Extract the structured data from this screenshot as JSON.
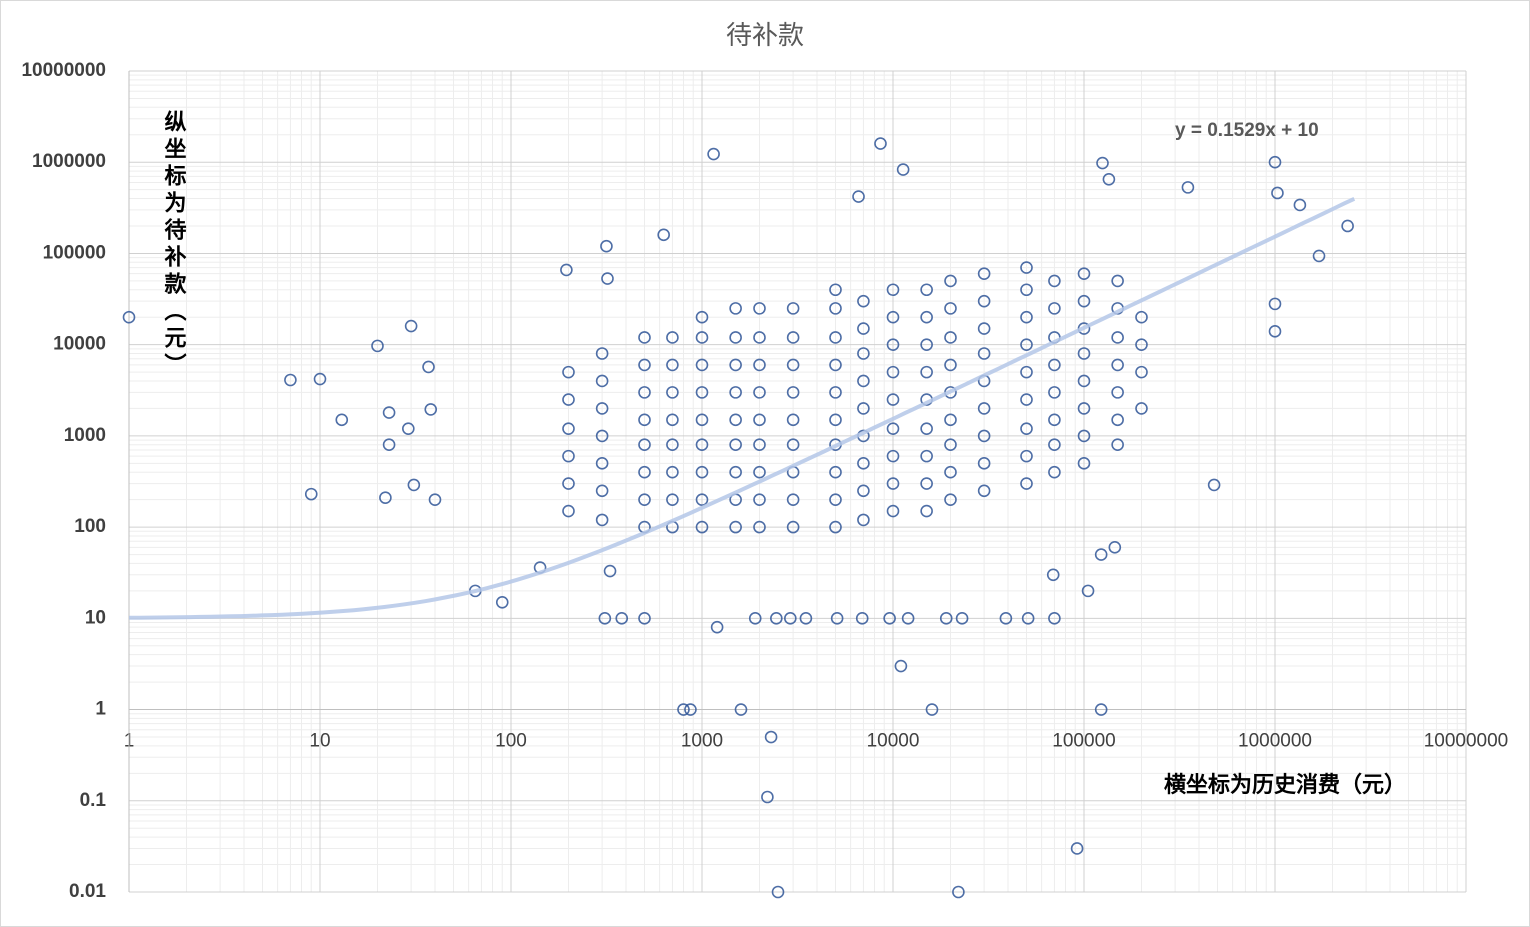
{
  "chart_data": {
    "type": "scatter",
    "title": "待补款",
    "x_label": "横坐标为历史消费（元）",
    "y_label": "纵坐标为待补款（元）",
    "log_x": true,
    "log_y": true,
    "grid": true,
    "minor_grid": true,
    "x_axis_crosses": 1,
    "color": "#2f5597",
    "xlim": [
      1,
      10000000
    ],
    "ylim": [
      0.01,
      10000000
    ],
    "xticks": [
      1,
      10,
      100,
      1000,
      10000,
      100000,
      1000000,
      10000000
    ],
    "yticks": [
      0.01,
      0.1,
      1,
      10,
      100,
      1000,
      10000,
      100000,
      1000000,
      10000000
    ],
    "trendline": {
      "label": "y = 0.1529x + 10",
      "slope": 0.1529,
      "intercept": 10,
      "xrange": [
        1,
        2600000
      ],
      "color": "#b4c7e7"
    },
    "x": [
      1,
      7,
      10,
      13,
      20,
      30,
      9,
      23,
      23,
      29,
      22,
      31,
      37,
      38,
      40,
      65,
      90,
      142,
      195,
      316,
      320,
      310,
      380,
      500,
      330,
      1150,
      8600,
      11300,
      630,
      6600,
      135000,
      125000,
      350000,
      1000000,
      1030000,
      2400000,
      1700000,
      1350000,
      1000000,
      1000000,
      480000,
      105000,
      145000,
      123000,
      69000,
      1200,
      2300,
      2200,
      2500,
      22000,
      92000,
      11000,
      1900,
      2450,
      2900,
      3500,
      5100,
      6900,
      9600,
      12000,
      19000,
      23000,
      39000,
      51000,
      70000,
      800,
      870,
      1600,
      16000,
      123000,
      200,
      200,
      200,
      200,
      200,
      200,
      300,
      300,
      300,
      300,
      300,
      300,
      300,
      500,
      500,
      500,
      500,
      500,
      500,
      500,
      500,
      700,
      700,
      700,
      700,
      700,
      700,
      700,
      700,
      1000,
      1000,
      1000,
      1000,
      1000,
      1000,
      1000,
      1000,
      1000,
      1500,
      1500,
      1500,
      1500,
      1500,
      1500,
      1500,
      1500,
      1500,
      2000,
      2000,
      2000,
      2000,
      2000,
      2000,
      2000,
      2000,
      2000,
      3000,
      3000,
      3000,
      3000,
      3000,
      3000,
      3000,
      3000,
      3000,
      5000,
      5000,
      5000,
      5000,
      5000,
      5000,
      5000,
      5000,
      5000,
      5000,
      7000,
      7000,
      7000,
      7000,
      7000,
      7000,
      7000,
      7000,
      7000,
      10000,
      10000,
      10000,
      10000,
      10000,
      10000,
      10000,
      10000,
      10000,
      15000,
      15000,
      15000,
      15000,
      15000,
      15000,
      15000,
      15000,
      15000,
      20000,
      20000,
      20000,
      20000,
      20000,
      20000,
      20000,
      20000,
      20000,
      30000,
      30000,
      30000,
      30000,
      30000,
      30000,
      30000,
      30000,
      30000,
      50000,
      50000,
      50000,
      50000,
      50000,
      50000,
      50000,
      50000,
      50000,
      70000,
      70000,
      70000,
      70000,
      70000,
      70000,
      70000,
      70000,
      100000,
      100000,
      100000,
      100000,
      100000,
      100000,
      100000,
      100000,
      150000,
      150000,
      150000,
      150000,
      150000,
      150000,
      150000,
      200000,
      200000,
      200000,
      200000
    ],
    "values": [
      20000,
      4100,
      4200,
      1500,
      9700,
      16000,
      230,
      1800,
      800,
      1200,
      210,
      290,
      5700,
      1950,
      200,
      20,
      15,
      36,
      66000,
      120000,
      53000,
      10,
      10,
      10,
      33,
      1230000,
      1600000,
      830000,
      160000,
      420000,
      650000,
      980000,
      530000,
      1000000,
      460000,
      200000,
      94000,
      340000,
      28000,
      14000,
      290,
      20,
      60,
      50,
      30,
      8,
      0.5,
      0.11,
      0.01,
      0.01,
      0.03,
      3,
      10,
      10,
      10,
      10,
      10,
      10,
      10,
      10,
      10,
      10,
      10,
      10,
      10,
      1,
      1,
      1,
      1,
      1,
      150,
      300,
      600,
      1200,
      2500,
      5000,
      120,
      250,
      500,
      1000,
      2000,
      4000,
      8000,
      100,
      200,
      400,
      800,
      1500,
      3000,
      6000,
      12000,
      100,
      200,
      400,
      800,
      1500,
      3000,
      6000,
      12000,
      100,
      200,
      400,
      800,
      1500,
      3000,
      6000,
      12000,
      20000,
      100,
      200,
      400,
      800,
      1500,
      3000,
      6000,
      12000,
      25000,
      100,
      200,
      400,
      800,
      1500,
      3000,
      6000,
      12000,
      25000,
      100,
      200,
      400,
      800,
      1500,
      3000,
      6000,
      12000,
      25000,
      100,
      200,
      400,
      800,
      1500,
      3000,
      6000,
      12000,
      25000,
      40000,
      120,
      250,
      500,
      1000,
      2000,
      4000,
      8000,
      15000,
      30000,
      150,
      300,
      600,
      1200,
      2500,
      5000,
      10000,
      20000,
      40000,
      150,
      300,
      600,
      1200,
      2500,
      5000,
      10000,
      20000,
      40000,
      200,
      400,
      800,
      1500,
      3000,
      6000,
      12000,
      25000,
      50000,
      250,
      500,
      1000,
      2000,
      4000,
      8000,
      15000,
      30000,
      60000,
      300,
      600,
      1200,
      2500,
      5000,
      10000,
      20000,
      40000,
      70000,
      400,
      800,
      1500,
      3000,
      6000,
      12000,
      25000,
      50000,
      500,
      1000,
      2000,
      4000,
      8000,
      15000,
      30000,
      60000,
      800,
      1500,
      3000,
      6000,
      12000,
      25000,
      50000,
      2000,
      5000,
      10000,
      20000
    ]
  }
}
